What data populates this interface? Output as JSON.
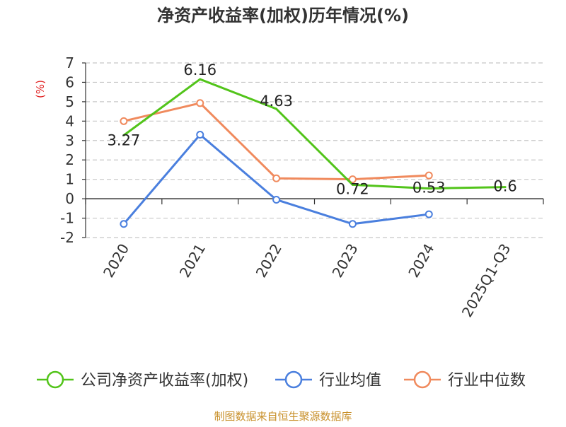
{
  "chart_data": {
    "type": "line",
    "title": "净资产收益率(加权)历年情况(%)",
    "ylabel": "(%)",
    "xlabel": "",
    "categories": [
      "2020",
      "2021",
      "2022",
      "2023",
      "2024",
      "2025Q1-Q3"
    ],
    "ylim": [
      -2,
      7
    ],
    "yticks": [
      -2,
      -1,
      0,
      1,
      2,
      3,
      4,
      5,
      6,
      7
    ],
    "ytick_labels": [
      "-2",
      "-1",
      "0",
      "1",
      "2",
      "3",
      "4",
      "5",
      "6",
      "7"
    ],
    "grid": true,
    "legend_position": "bottom",
    "series": [
      {
        "name": "公司净资产收益率(加权)",
        "color": "#52c41a",
        "values": [
          3.27,
          6.16,
          4.63,
          0.72,
          0.53,
          0.6
        ],
        "labels": [
          "3.27",
          "6.16",
          "4.63",
          "0.72",
          "0.53",
          "0.6"
        ],
        "show_labels": true
      },
      {
        "name": "行业均值",
        "color": "#4a7fde",
        "values": [
          -1.3,
          3.3,
          -0.05,
          -1.3,
          -0.8,
          null
        ],
        "show_labels": false
      },
      {
        "name": "行业中位数",
        "color": "#f08a5d",
        "values": [
          4.0,
          4.93,
          1.05,
          1.0,
          1.2,
          null
        ],
        "show_labels": false
      }
    ]
  },
  "footer": {
    "source": "制图数据来自恒生聚源数据库",
    "source_color": "#c8902a"
  }
}
